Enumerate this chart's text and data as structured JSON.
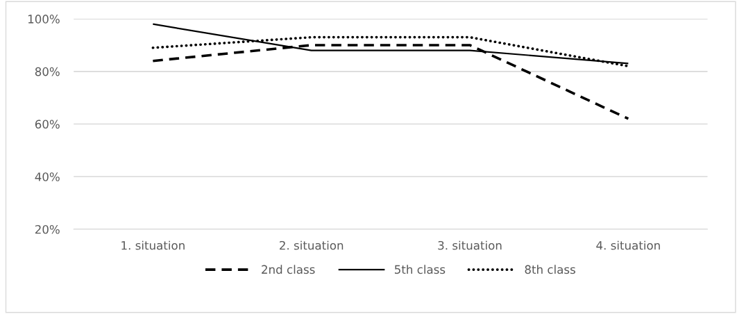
{
  "chart_data": {
    "type": "line",
    "categories": [
      "1. situation",
      "2. situation",
      "3. situation",
      "4. situation"
    ],
    "series": [
      {
        "name": "2nd class",
        "color": "#000000",
        "line_style": "dashed",
        "values": [
          84,
          90,
          90,
          62
        ]
      },
      {
        "name": "5th class",
        "color": "#000000",
        "line_style": "solid",
        "values": [
          98,
          88,
          88,
          83
        ]
      },
      {
        "name": "8th class",
        "color": "#000000",
        "line_style": "dotted",
        "values": [
          89,
          93,
          93,
          82
        ]
      }
    ],
    "ylim": [
      20,
      100
    ],
    "yticks": [
      {
        "value": 20,
        "label": "20%"
      },
      {
        "value": 40,
        "label": "40%"
      },
      {
        "value": 60,
        "label": "60%"
      },
      {
        "value": 80,
        "label": "80%"
      },
      {
        "value": 100,
        "label": "100%"
      }
    ],
    "grid": "y",
    "legend": "bottom",
    "marker": "none"
  }
}
